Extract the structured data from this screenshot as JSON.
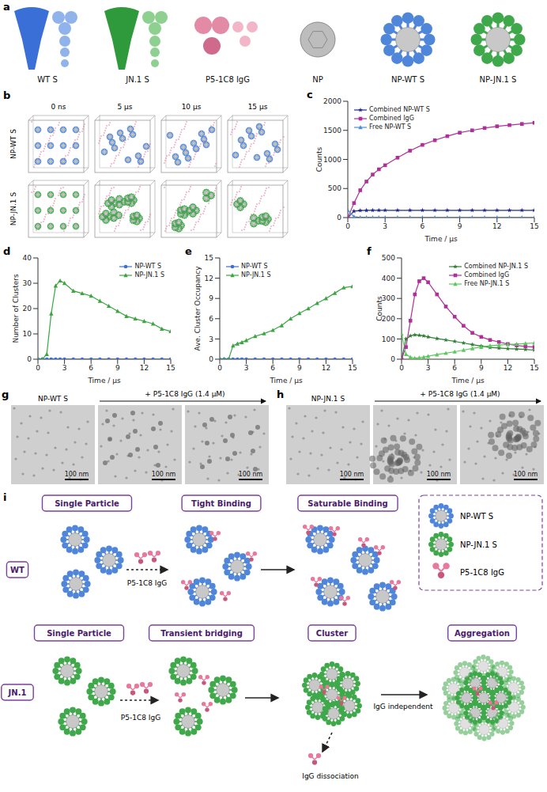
{
  "panels": {
    "a": {
      "letter": "a",
      "items": [
        "WT S",
        "JN.1 S",
        "P5-1C8 IgG",
        "NP",
        "NP-WT S",
        "NP-JN.1 S"
      ]
    },
    "b": {
      "letter": "b",
      "rows": [
        "NP-WT S",
        "NP-JN.1 S"
      ],
      "columns": [
        "0 ns",
        "5 μs",
        "10 μs",
        "15 μs"
      ]
    },
    "g": {
      "letter": "g",
      "title": "NP-WT S",
      "treatment": "+ P5-1C8 IgG (1.4 μM)",
      "scale_bar": "100 nm"
    },
    "h": {
      "letter": "h",
      "title": "NP-JN.1 S",
      "treatment": "+ P5-1C8 IgG (1.4 μM)",
      "scale_bar": "100 nm"
    },
    "i": {
      "letter": "i",
      "rows": [
        {
          "label": "WT",
          "stages": [
            "Single Particle",
            "Tight Binding",
            "Saturable Binding"
          ],
          "notes": [
            "P5-1C8 IgG"
          ]
        },
        {
          "label": "JN.1",
          "stages": [
            "Single Particle",
            "Transient bridging",
            "Cluster",
            "Aggregation"
          ],
          "notes": [
            "P5-1C8 IgG",
            "IgG dissociation",
            "IgG independent"
          ]
        }
      ],
      "legend": [
        "NP-WT S",
        "NP-JN.1 S",
        "P5-1C8 IgG"
      ]
    }
  },
  "chart_data": [
    {
      "panel": "c",
      "type": "line",
      "x_label": "Time / μs",
      "y_label": "Counts",
      "x": [
        0,
        0.5,
        1,
        1.5,
        2,
        2.5,
        3,
        4,
        5,
        6,
        7,
        8,
        9,
        10,
        11,
        12,
        13,
        14,
        15
      ],
      "xlim": [
        0,
        15
      ],
      "xticks": [
        0,
        3,
        6,
        9,
        12,
        15
      ],
      "ylim": [
        0,
        2000
      ],
      "yticks": [
        0,
        500,
        1000,
        1500,
        2000
      ],
      "legend": "upper left",
      "series": [
        {
          "name": "Combined NP-WT S",
          "color": "#1f2a8c",
          "marker": "star",
          "values": [
            0,
            110,
            122,
            124,
            125,
            125,
            125,
            125,
            125,
            125,
            125,
            125,
            125,
            125,
            125,
            125,
            125,
            125,
            125
          ]
        },
        {
          "name": "Combined IgG",
          "color": "#b0309a",
          "marker": "square",
          "values": [
            0,
            250,
            470,
            620,
            740,
            830,
            900,
            1030,
            1150,
            1250,
            1330,
            1400,
            1460,
            1500,
            1540,
            1570,
            1590,
            1610,
            1630
          ]
        },
        {
          "name": "Free NP-WT S",
          "color": "#4f8fd8",
          "marker": "triangle",
          "values": [
            125,
            15,
            3,
            1,
            0,
            0,
            0,
            0,
            0,
            0,
            0,
            0,
            0,
            0,
            0,
            0,
            0,
            0,
            0
          ]
        }
      ]
    },
    {
      "panel": "d",
      "type": "line",
      "x_label": "Time / μs",
      "y_label": "Number of Clusters",
      "x": [
        0,
        0.5,
        1,
        1.5,
        2,
        2.5,
        3,
        4,
        5,
        6,
        7,
        8,
        9,
        10,
        11,
        12,
        13,
        14,
        15
      ],
      "xlim": [
        0,
        15
      ],
      "xticks": [
        0,
        3,
        6,
        9,
        12,
        15
      ],
      "ylim": [
        0,
        40
      ],
      "yticks": [
        0,
        10,
        20,
        30,
        40
      ],
      "legend": "upper right",
      "series": [
        {
          "name": "NP-WT S",
          "color": "#3b6fd6",
          "marker": "circle",
          "values": [
            0,
            0,
            0,
            0,
            0,
            0,
            0,
            0,
            0,
            0,
            0,
            0,
            0,
            0,
            0,
            0,
            0,
            0,
            0
          ]
        },
        {
          "name": "NP-JN.1 S",
          "color": "#3aa640",
          "marker": "triangle",
          "values": [
            0,
            0,
            2,
            18,
            29,
            31,
            30,
            27,
            26,
            25,
            23,
            21,
            19,
            17,
            16,
            15,
            14,
            12,
            11
          ]
        }
      ]
    },
    {
      "panel": "e",
      "type": "line",
      "x_label": "Time / μs",
      "y_label": "Ave. Cluster Occupancy",
      "x": [
        0,
        0.5,
        1,
        1.5,
        2,
        2.5,
        3,
        4,
        5,
        6,
        7,
        8,
        9,
        10,
        11,
        12,
        13,
        14,
        15
      ],
      "xlim": [
        0,
        15
      ],
      "xticks": [
        0,
        3,
        6,
        9,
        12,
        15
      ],
      "ylim": [
        0,
        15
      ],
      "yticks": [
        0,
        3,
        6,
        9,
        12,
        15
      ],
      "legend": "upper left",
      "series": [
        {
          "name": "NP-WT S",
          "color": "#3b6fd6",
          "marker": "circle",
          "values": [
            0,
            0,
            0,
            0,
            0,
            0,
            0,
            0,
            0,
            0,
            0,
            0,
            0,
            0,
            0,
            0,
            0,
            0,
            0
          ]
        },
        {
          "name": "NP-JN.1 S",
          "color": "#3aa640",
          "marker": "triangle",
          "values": [
            0,
            0,
            0,
            2,
            2.3,
            2.5,
            2.8,
            3.4,
            3.8,
            4.3,
            5,
            6,
            6.8,
            7.5,
            8.3,
            9,
            9.8,
            10.6,
            10.8
          ]
        }
      ]
    },
    {
      "panel": "f",
      "type": "line",
      "x_label": "Time / μs",
      "y_label": "Counts",
      "x": [
        0,
        0.5,
        1,
        1.5,
        2,
        2.5,
        3,
        4,
        5,
        6,
        7,
        8,
        9,
        10,
        11,
        12,
        13,
        14,
        15
      ],
      "xlim": [
        0,
        15
      ],
      "xticks": [
        0,
        3,
        6,
        9,
        12,
        15
      ],
      "ylim": [
        0,
        500
      ],
      "yticks": [
        0,
        100,
        200,
        300,
        400,
        500
      ],
      "legend": "upper right",
      "series": [
        {
          "name": "Combined NP-JN.1 S",
          "color": "#2e7d32",
          "marker": "star",
          "values": [
            0,
            100,
            115,
            120,
            118,
            115,
            110,
            102,
            95,
            88,
            80,
            72,
            65,
            58,
            55,
            52,
            50,
            48,
            45
          ]
        },
        {
          "name": "Combined IgG",
          "color": "#b0309a",
          "marker": "square",
          "values": [
            0,
            60,
            190,
            320,
            385,
            400,
            380,
            320,
            260,
            210,
            165,
            130,
            110,
            95,
            85,
            75,
            68,
            63,
            60
          ]
        },
        {
          "name": "Free NP-JN.1 S",
          "color": "#5cc85c",
          "marker": "triangle",
          "values": [
            125,
            25,
            10,
            5,
            7,
            10,
            15,
            23,
            30,
            37,
            45,
            53,
            60,
            67,
            70,
            73,
            75,
            78,
            80
          ]
        }
      ]
    }
  ]
}
